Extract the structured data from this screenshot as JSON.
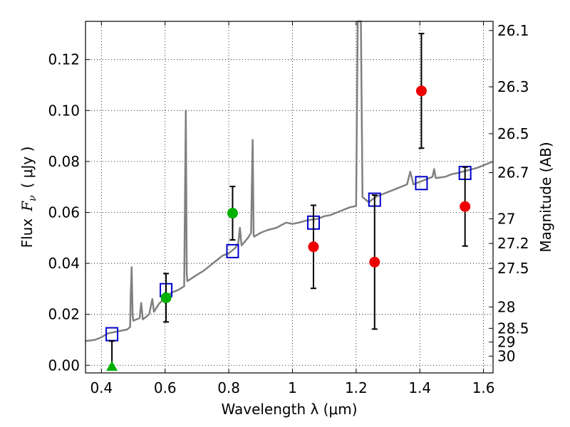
{
  "chart_data": {
    "type": "scatter",
    "xlabel": "Wavelength  λ (μm)",
    "ylabel_text": "Flux",
    "ylabel_symbol": "F",
    "ylabel_sub": "ν",
    "ylabel_units": "( μJy )",
    "y2label": "Magnitude (AB)",
    "xlim": [
      0.35,
      1.63
    ],
    "ylim": [
      -0.003,
      0.135
    ],
    "grid": true,
    "x_ticks": [
      {
        "value": 0.4,
        "label": "0.4"
      },
      {
        "value": 0.6,
        "label": "0.6"
      },
      {
        "value": 0.8,
        "label": "0.8"
      },
      {
        "value": 1.0,
        "label": "1"
      },
      {
        "value": 1.2,
        "label": "1.2"
      },
      {
        "value": 1.4,
        "label": "1.4"
      },
      {
        "value": 1.6,
        "label": "1.6"
      }
    ],
    "y_ticks": [
      {
        "value": 0.0,
        "label": "0.00"
      },
      {
        "value": 0.02,
        "label": "0.02"
      },
      {
        "value": 0.04,
        "label": "0.04"
      },
      {
        "value": 0.06,
        "label": "0.06"
      },
      {
        "value": 0.08,
        "label": "0.08"
      },
      {
        "value": 0.1,
        "label": "0.10"
      },
      {
        "value": 0.12,
        "label": "0.12"
      }
    ],
    "y2_ticks": [
      {
        "flux": 0.1314,
        "label": "26.1"
      },
      {
        "flux": 0.1093,
        "label": "26.3"
      },
      {
        "flux": 0.0909,
        "label": "26.5"
      },
      {
        "flux": 0.0756,
        "label": "26.7"
      },
      {
        "flux": 0.0575,
        "label": "27"
      },
      {
        "flux": 0.0478,
        "label": "27.2"
      },
      {
        "flux": 0.038,
        "label": "27.5"
      },
      {
        "flux": 0.0229,
        "label": "28"
      },
      {
        "flux": 0.0145,
        "label": "28.5"
      },
      {
        "flux": 0.0091,
        "label": "29"
      },
      {
        "flux": 0.0036,
        "label": "30"
      }
    ],
    "series": [
      {
        "name": "model-spectrum",
        "kind": "line",
        "color": "#808080",
        "points": [
          [
            0.35,
            0.0095
          ],
          [
            0.38,
            0.01
          ],
          [
            0.4,
            0.011
          ],
          [
            0.42,
            0.0125
          ],
          [
            0.44,
            0.013
          ],
          [
            0.46,
            0.0135
          ],
          [
            0.48,
            0.014
          ],
          [
            0.49,
            0.015
          ],
          [
            0.492,
            0.028
          ],
          [
            0.495,
            0.0385
          ],
          [
            0.498,
            0.02
          ],
          [
            0.5,
            0.0175
          ],
          [
            0.52,
            0.0185
          ],
          [
            0.525,
            0.0245
          ],
          [
            0.53,
            0.018
          ],
          [
            0.55,
            0.02
          ],
          [
            0.56,
            0.026
          ],
          [
            0.565,
            0.021
          ],
          [
            0.58,
            0.024
          ],
          [
            0.6,
            0.0265
          ],
          [
            0.62,
            0.0285
          ],
          [
            0.64,
            0.0295
          ],
          [
            0.66,
            0.031
          ],
          [
            0.665,
            0.1
          ],
          [
            0.668,
            0.036
          ],
          [
            0.67,
            0.033
          ],
          [
            0.7,
            0.0355
          ],
          [
            0.72,
            0.037
          ],
          [
            0.74,
            0.039
          ],
          [
            0.76,
            0.041
          ],
          [
            0.78,
            0.043
          ],
          [
            0.8,
            0.044
          ],
          [
            0.82,
            0.046
          ],
          [
            0.83,
            0.048
          ],
          [
            0.835,
            0.054
          ],
          [
            0.84,
            0.047
          ],
          [
            0.86,
            0.05
          ],
          [
            0.87,
            0.052
          ],
          [
            0.875,
            0.0885
          ],
          [
            0.878,
            0.051
          ],
          [
            0.88,
            0.0505
          ],
          [
            0.9,
            0.052
          ],
          [
            0.92,
            0.053
          ],
          [
            0.95,
            0.054
          ],
          [
            0.98,
            0.056
          ],
          [
            1.0,
            0.0555
          ],
          [
            1.02,
            0.056
          ],
          [
            1.05,
            0.057
          ],
          [
            1.08,
            0.0575
          ],
          [
            1.1,
            0.0585
          ],
          [
            1.12,
            0.059
          ],
          [
            1.14,
            0.06
          ],
          [
            1.16,
            0.061
          ],
          [
            1.18,
            0.062
          ],
          [
            1.2,
            0.0625
          ],
          [
            1.205,
            0.135
          ],
          [
            1.215,
            0.135
          ],
          [
            1.22,
            0.066
          ],
          [
            1.24,
            0.064
          ],
          [
            1.26,
            0.066
          ],
          [
            1.28,
            0.067
          ],
          [
            1.3,
            0.068
          ],
          [
            1.32,
            0.069
          ],
          [
            1.34,
            0.07
          ],
          [
            1.36,
            0.071
          ],
          [
            1.37,
            0.076
          ],
          [
            1.38,
            0.071
          ],
          [
            1.4,
            0.072
          ],
          [
            1.42,
            0.073
          ],
          [
            1.44,
            0.074
          ],
          [
            1.445,
            0.077
          ],
          [
            1.45,
            0.0735
          ],
          [
            1.48,
            0.074
          ],
          [
            1.5,
            0.075
          ],
          [
            1.52,
            0.0755
          ],
          [
            1.55,
            0.0765
          ],
          [
            1.58,
            0.0775
          ],
          [
            1.6,
            0.0785
          ],
          [
            1.63,
            0.08
          ]
        ]
      },
      {
        "name": "model-photometry",
        "kind": "square",
        "color": "#0000cc",
        "points": [
          [
            0.433,
            0.0122
          ],
          [
            0.603,
            0.0295
          ],
          [
            0.812,
            0.0448
          ],
          [
            1.066,
            0.056
          ],
          [
            1.258,
            0.065
          ],
          [
            1.405,
            0.0715
          ],
          [
            1.542,
            0.0755
          ]
        ]
      },
      {
        "name": "observed-green",
        "kind": "circle",
        "color": "#00b000",
        "points": [
          {
            "x": 0.603,
            "y": 0.0265,
            "err": 0.0095
          },
          {
            "x": 0.812,
            "y": 0.0597,
            "err": 0.0105
          }
        ]
      },
      {
        "name": "observed-red",
        "kind": "circle",
        "color": "#ee0000",
        "points": [
          {
            "x": 1.066,
            "y": 0.0465,
            "err": 0.0163
          },
          {
            "x": 1.258,
            "y": 0.0405,
            "err": 0.0263
          },
          {
            "x": 1.405,
            "y": 0.1077,
            "err": 0.0225
          },
          {
            "x": 1.542,
            "y": 0.0623,
            "err": 0.0155
          }
        ]
      },
      {
        "name": "upper-limit",
        "kind": "triangle",
        "color": "#00b000",
        "points": [
          {
            "x": 0.433,
            "y": -0.0005,
            "err_top": 0.01
          }
        ]
      }
    ]
  }
}
